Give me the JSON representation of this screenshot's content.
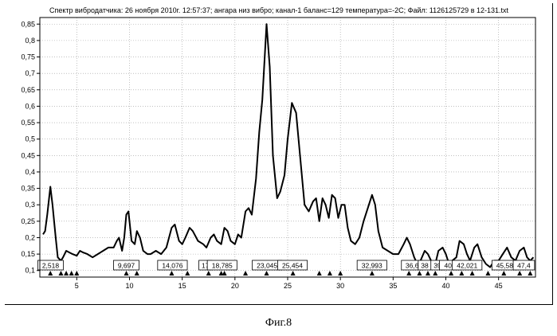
{
  "chart_data": {
    "type": "line",
    "title": "Спектр вибродатчика: 26 ноября 2010г. 12:57:37; ангара низ вибро; канал-1 баланс=129 температура=-2С; Файл: 1126125729 в 12-131.txt",
    "xlabel": "",
    "ylabel": "",
    "xlim": [
      1.5,
      48.5
    ],
    "ylim": [
      0.08,
      0.87
    ],
    "x_ticks": [
      5,
      10,
      15,
      20,
      25,
      30,
      35,
      40,
      45
    ],
    "x_tick_labels": [
      "5",
      "10",
      "15",
      "20",
      "25",
      "30",
      "35",
      "40",
      "45"
    ],
    "y_ticks": [
      0.1,
      0.15,
      0.2,
      0.25,
      0.3,
      0.35,
      0.4,
      0.45,
      0.5,
      0.55,
      0.6,
      0.65,
      0.7,
      0.75,
      0.8,
      0.85
    ],
    "y_tick_labels": [
      "0,1",
      "0,15",
      "0,2",
      "0,25",
      "0,3",
      "0,35",
      "0,4",
      "0,45",
      "0,5",
      "0,55",
      "0,6",
      "0,65",
      "0,7",
      "0,75",
      "0,8",
      "0,85"
    ],
    "grid": true,
    "series": [
      {
        "x": [
          1.8,
          2.0,
          2.2,
          2.5,
          2.7,
          3.0,
          3.2,
          3.5,
          3.7,
          4.0,
          4.3,
          4.6,
          5.0,
          5.3,
          5.6,
          6.0,
          6.5,
          7.0,
          7.5,
          8.0,
          8.5,
          8.8,
          9.0,
          9.3,
          9.5,
          9.7,
          9.9,
          10.2,
          10.5,
          10.7,
          11.0,
          11.3,
          11.7,
          12.0,
          12.5,
          13.0,
          13.5,
          14.0,
          14.3,
          14.7,
          15.0,
          15.3,
          15.7,
          16.0,
          16.5,
          17.0,
          17.3,
          17.7,
          18.0,
          18.3,
          18.7,
          19.0,
          19.3,
          19.6,
          20.0,
          20.3,
          20.6,
          21.0,
          21.3,
          21.6,
          22.0,
          22.3,
          22.6,
          23.0,
          23.3,
          23.6,
          24.0,
          24.3,
          24.7,
          25.0,
          25.4,
          25.8,
          26.2,
          26.6,
          27.0,
          27.4,
          27.7,
          28.0,
          28.3,
          28.6,
          28.9,
          29.2,
          29.5,
          29.8,
          30.1,
          30.4,
          30.7,
          31.0,
          31.4,
          31.8,
          32.2,
          32.6,
          33.0,
          33.3,
          33.6,
          34.0,
          34.5,
          35.0,
          35.5,
          36.0,
          36.3,
          36.6,
          37.0,
          37.3,
          37.6,
          38.0,
          38.3,
          38.6,
          39.0,
          39.3,
          39.7,
          40.0,
          40.3,
          40.6,
          41.0,
          41.3,
          41.7,
          42.0,
          42.3,
          42.7,
          43.0,
          43.4,
          43.8,
          44.2,
          44.6,
          45.0,
          45.4,
          45.8,
          46.2,
          46.6,
          47.0,
          47.4,
          47.7,
          48.0,
          48.3
        ],
        "y": [
          0.21,
          0.22,
          0.27,
          0.355,
          0.3,
          0.2,
          0.14,
          0.13,
          0.14,
          0.16,
          0.155,
          0.15,
          0.145,
          0.16,
          0.155,
          0.15,
          0.14,
          0.15,
          0.16,
          0.17,
          0.17,
          0.19,
          0.2,
          0.16,
          0.2,
          0.27,
          0.28,
          0.19,
          0.18,
          0.22,
          0.2,
          0.16,
          0.15,
          0.15,
          0.16,
          0.15,
          0.17,
          0.23,
          0.24,
          0.19,
          0.18,
          0.2,
          0.23,
          0.22,
          0.19,
          0.18,
          0.17,
          0.2,
          0.21,
          0.19,
          0.18,
          0.23,
          0.22,
          0.19,
          0.18,
          0.21,
          0.2,
          0.28,
          0.29,
          0.27,
          0.38,
          0.52,
          0.62,
          0.85,
          0.72,
          0.45,
          0.32,
          0.34,
          0.39,
          0.5,
          0.61,
          0.58,
          0.44,
          0.3,
          0.28,
          0.31,
          0.32,
          0.25,
          0.32,
          0.3,
          0.26,
          0.33,
          0.32,
          0.26,
          0.3,
          0.3,
          0.23,
          0.19,
          0.18,
          0.2,
          0.25,
          0.29,
          0.33,
          0.3,
          0.22,
          0.17,
          0.16,
          0.15,
          0.15,
          0.18,
          0.2,
          0.18,
          0.14,
          0.12,
          0.13,
          0.16,
          0.15,
          0.13,
          0.12,
          0.16,
          0.17,
          0.15,
          0.12,
          0.13,
          0.14,
          0.19,
          0.18,
          0.15,
          0.13,
          0.17,
          0.18,
          0.14,
          0.12,
          0.11,
          0.13,
          0.13,
          0.15,
          0.17,
          0.14,
          0.13,
          0.16,
          0.17,
          0.14,
          0.13,
          0.14
        ]
      }
    ],
    "annotations": [
      {
        "x": 2.518,
        "label": "2,518"
      },
      {
        "x": 9.697,
        "label": "9,697"
      },
      {
        "x": 14.076,
        "label": "14,076"
      },
      {
        "x": 17.2,
        "label": "17"
      },
      {
        "x": 18.785,
        "label": "18,785"
      },
      {
        "x": 23.045,
        "label": "23,045"
      },
      {
        "x": 25.454,
        "label": "25,454"
      },
      {
        "x": 32.993,
        "label": "32,993"
      },
      {
        "x": 36.8,
        "label": "36,6"
      },
      {
        "x": 38.0,
        "label": "38"
      },
      {
        "x": 39.2,
        "label": "39"
      },
      {
        "x": 40.4,
        "label": "40,("
      },
      {
        "x": 42.021,
        "label": "42,021"
      },
      {
        "x": 45.58,
        "label": "45,58"
      },
      {
        "x": 47.4,
        "label": "47,4"
      }
    ],
    "markers_x": [
      2.5,
      3.5,
      4.0,
      4.5,
      5.0,
      9.7,
      10.7,
      14.0,
      15.5,
      17.5,
      18.7,
      19.0,
      21.0,
      23.0,
      25.5,
      28.0,
      29.0,
      30.0,
      33.0,
      36.5,
      37.5,
      38.3,
      39.0,
      40.5,
      41.5,
      42.5,
      44.0,
      45.5,
      47.0,
      48.0
    ]
  },
  "caption": "Фиг.8"
}
